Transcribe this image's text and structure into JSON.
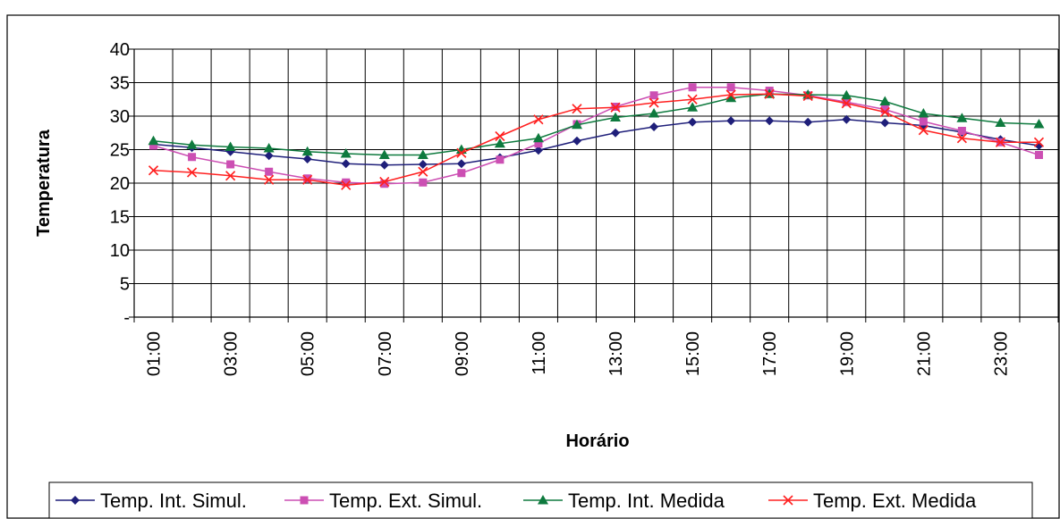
{
  "chart_data": {
    "type": "line",
    "xlabel": "Horário",
    "ylabel": "Temperatura",
    "ylim": [
      0,
      40
    ],
    "y_ticks": [
      "-",
      "5",
      "10",
      "15",
      "20",
      "25",
      "30",
      "35",
      "40"
    ],
    "x_tick_labels": [
      "01:00",
      "03:00",
      "05:00",
      "07:00",
      "09:00",
      "11:00",
      "13:00",
      "15:00",
      "17:00",
      "19:00",
      "21:00",
      "23:00"
    ],
    "grid": true,
    "legend_position": "bottom",
    "x": [
      "01:00",
      "02:00",
      "03:00",
      "04:00",
      "05:00",
      "06:00",
      "07:00",
      "08:00",
      "09:00",
      "10:00",
      "11:00",
      "12:00",
      "13:00",
      "14:00",
      "15:00",
      "16:00",
      "17:00",
      "18:00",
      "19:00",
      "20:00",
      "21:00",
      "22:00",
      "23:00",
      "24:00"
    ],
    "series": [
      {
        "name": "Temp. Int. Simul.",
        "color": "#1F1F7A",
        "marker": "diamond",
        "values": [
          25.8,
          25.3,
          24.7,
          24.1,
          23.6,
          22.9,
          22.7,
          22.8,
          22.9,
          23.8,
          24.9,
          26.3,
          27.5,
          28.4,
          29.1,
          29.3,
          29.3,
          29.1,
          29.5,
          29.0,
          28.6,
          27.6,
          26.5,
          25.6
        ]
      },
      {
        "name": "Temp. Ext. Simul.",
        "color": "#CC4FB3",
        "marker": "square",
        "values": [
          25.6,
          23.9,
          22.8,
          21.7,
          20.7,
          20.1,
          19.9,
          20.1,
          21.5,
          23.5,
          25.9,
          28.8,
          31.4,
          33.1,
          34.3,
          34.3,
          33.8,
          33.1,
          32.1,
          31.0,
          29.2,
          27.8,
          26.1,
          24.2
        ]
      },
      {
        "name": "Temp. Int. Medida",
        "color": "#0E7A3E",
        "marker": "triangle",
        "values": [
          26.3,
          25.7,
          25.4,
          25.2,
          24.7,
          24.4,
          24.2,
          24.2,
          25.0,
          25.9,
          26.7,
          28.7,
          29.8,
          30.4,
          31.3,
          32.7,
          33.3,
          33.2,
          33.1,
          32.2,
          30.4,
          29.7,
          29.0,
          28.8
        ]
      },
      {
        "name": "Temp. Ext. Medida",
        "color": "#FF2020",
        "marker": "x",
        "values": [
          21.9,
          21.6,
          21.1,
          20.5,
          20.5,
          19.7,
          20.2,
          21.7,
          24.5,
          27.0,
          29.5,
          31.1,
          31.3,
          32.0,
          32.5,
          33.2,
          33.3,
          33.0,
          31.9,
          30.6,
          27.9,
          26.7,
          26.1,
          26.1
        ]
      }
    ]
  }
}
